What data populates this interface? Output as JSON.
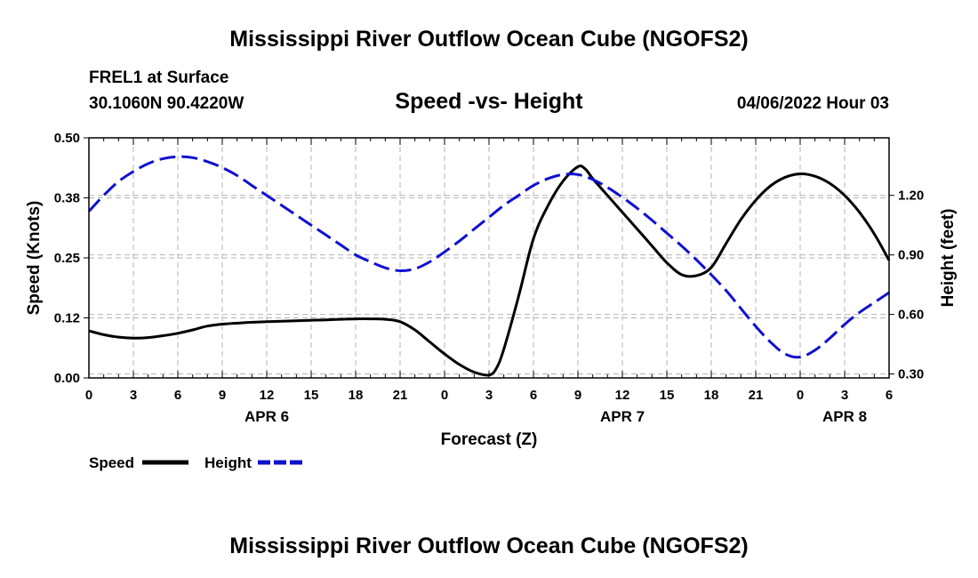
{
  "header": {
    "title": "Mississippi River Outflow Ocean Cube (NGOFS2)",
    "station": "FREL1 at Surface",
    "coords": "30.1060N  90.4220W",
    "date": "04/06/2022 Hour 03",
    "footer_title": "Mississippi River Outflow Ocean Cube (NGOFS2)"
  },
  "legend": {
    "speed_label": "Speed",
    "height_label": "Height"
  },
  "colors": {
    "speed": "#000000",
    "height": "#1010d0",
    "grid": "#b4b4b4"
  },
  "chart_data": {
    "type": "line",
    "title": "Speed -vs- Height",
    "xlabel": "Forecast (Z)",
    "ylabel_left": "Speed (Knots)",
    "ylabel_right": "Height (feet)",
    "xlim": [
      0,
      54
    ],
    "ylim_left": [
      0,
      0.5
    ],
    "ylim_right": [
      0.28,
      1.49
    ],
    "x_ticks": [
      {
        "x": 0,
        "label": "0"
      },
      {
        "x": 3,
        "label": "3"
      },
      {
        "x": 6,
        "label": "6"
      },
      {
        "x": 9,
        "label": "9"
      },
      {
        "x": 12,
        "label": "12"
      },
      {
        "x": 15,
        "label": "15"
      },
      {
        "x": 18,
        "label": "18"
      },
      {
        "x": 21,
        "label": "21"
      },
      {
        "x": 24,
        "label": "0"
      },
      {
        "x": 27,
        "label": "3"
      },
      {
        "x": 30,
        "label": "6"
      },
      {
        "x": 33,
        "label": "9"
      },
      {
        "x": 36,
        "label": "12"
      },
      {
        "x": 39,
        "label": "15"
      },
      {
        "x": 42,
        "label": "18"
      },
      {
        "x": 45,
        "label": "21"
      },
      {
        "x": 48,
        "label": "0"
      },
      {
        "x": 51,
        "label": "3"
      },
      {
        "x": 54,
        "label": "6"
      }
    ],
    "date_labels": [
      {
        "x": 12,
        "label": "APR 6"
      },
      {
        "x": 36,
        "label": "APR 7"
      },
      {
        "x": 51,
        "label": "APR 8"
      }
    ],
    "y_ticks_left": [
      {
        "v": 0.0,
        "label": "0.00"
      },
      {
        "v": 0.125,
        "label": "0.12"
      },
      {
        "v": 0.25,
        "label": "0.25"
      },
      {
        "v": 0.375,
        "label": "0.38"
      },
      {
        "v": 0.5,
        "label": "0.50"
      }
    ],
    "y_ticks_right": [
      {
        "v": 0.3,
        "label": "0.30"
      },
      {
        "v": 0.6,
        "label": "0.60"
      },
      {
        "v": 0.9,
        "label": "0.90"
      },
      {
        "v": 1.2,
        "label": "1.20"
      }
    ],
    "series": [
      {
        "name": "Speed",
        "axis": "left",
        "style": "solid",
        "x": [
          0,
          1,
          2,
          3,
          4,
          5,
          6,
          7,
          8,
          9,
          10,
          11,
          12,
          13,
          14,
          15,
          16,
          17,
          18,
          19,
          20,
          21,
          22,
          23,
          24,
          25,
          26,
          27,
          27.5,
          28,
          29,
          30,
          31,
          32,
          33,
          33.5,
          34,
          35,
          36,
          37,
          38,
          39,
          40,
          41,
          42,
          43,
          44,
          45,
          46,
          47,
          48,
          49,
          50,
          51,
          52,
          53,
          54
        ],
        "y": [
          0.098,
          0.09,
          0.085,
          0.083,
          0.084,
          0.088,
          0.093,
          0.1,
          0.108,
          0.112,
          0.114,
          0.116,
          0.117,
          0.118,
          0.119,
          0.12,
          0.121,
          0.122,
          0.123,
          0.123,
          0.122,
          0.117,
          0.1,
          0.075,
          0.05,
          0.028,
          0.012,
          0.006,
          0.02,
          0.06,
          0.17,
          0.29,
          0.36,
          0.41,
          0.44,
          0.435,
          0.415,
          0.38,
          0.345,
          0.31,
          0.275,
          0.24,
          0.215,
          0.213,
          0.23,
          0.28,
          0.33,
          0.37,
          0.4,
          0.418,
          0.425,
          0.42,
          0.405,
          0.38,
          0.345,
          0.3,
          0.245
        ]
      },
      {
        "name": "Height",
        "axis": "right",
        "style": "dashed",
        "x": [
          0,
          1,
          2,
          3,
          4,
          5,
          6,
          7,
          8,
          9,
          10,
          11,
          12,
          13,
          14,
          15,
          16,
          17,
          18,
          19,
          20,
          21,
          22,
          23,
          24,
          25,
          26,
          27,
          28,
          29,
          30,
          31,
          32,
          33,
          34,
          35,
          36,
          37,
          38,
          39,
          40,
          41,
          42,
          43,
          44,
          45,
          46,
          47,
          48,
          49,
          50,
          51,
          52,
          53,
          54
        ],
        "y": [
          1.12,
          1.2,
          1.27,
          1.32,
          1.36,
          1.385,
          1.395,
          1.39,
          1.37,
          1.34,
          1.3,
          1.25,
          1.2,
          1.15,
          1.1,
          1.05,
          1.0,
          0.95,
          0.9,
          0.865,
          0.835,
          0.82,
          0.83,
          0.865,
          0.915,
          0.97,
          1.03,
          1.09,
          1.15,
          1.2,
          1.25,
          1.285,
          1.305,
          1.305,
          1.28,
          1.24,
          1.19,
          1.135,
          1.075,
          1.01,
          0.945,
          0.875,
          0.8,
          0.72,
          0.63,
          0.54,
          0.46,
          0.4,
          0.385,
          0.42,
          0.48,
          0.55,
          0.61,
          0.66,
          0.71
        ]
      }
    ]
  }
}
